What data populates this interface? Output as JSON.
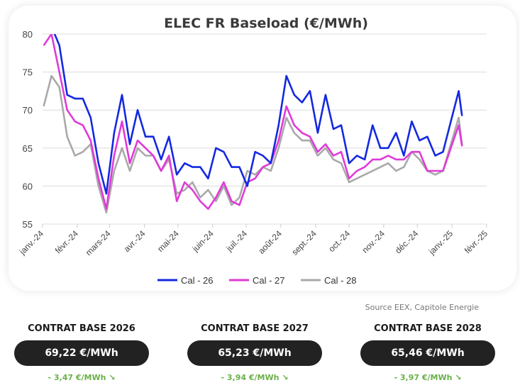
{
  "chart_data": {
    "type": "line",
    "title": "ELEC FR Baseload (€/MWh)",
    "ylim": [
      55,
      80
    ],
    "yticks": [
      55,
      60,
      65,
      70,
      75,
      80
    ],
    "xlim": [
      "2024-01-01",
      "2025-02-01"
    ],
    "xticks": [
      {
        "date": "2024-01-01",
        "label": "janv.-24"
      },
      {
        "date": "2024-02-01",
        "label": "févr.-24"
      },
      {
        "date": "2024-03-01",
        "label": "mars-24"
      },
      {
        "date": "2024-04-01",
        "label": "avr.-24"
      },
      {
        "date": "2024-05-01",
        "label": "mai-24"
      },
      {
        "date": "2024-06-01",
        "label": "juin-24"
      },
      {
        "date": "2024-07-01",
        "label": "juil.-24"
      },
      {
        "date": "2024-08-01",
        "label": "août-24"
      },
      {
        "date": "2024-09-01",
        "label": "sept.-24"
      },
      {
        "date": "2024-10-01",
        "label": "oct.-24"
      },
      {
        "date": "2024-11-01",
        "label": "nov.-24"
      },
      {
        "date": "2024-12-01",
        "label": "déc.-24"
      },
      {
        "date": "2025-01-01",
        "label": "janv.-25"
      },
      {
        "date": "2025-02-01",
        "label": "févr.-25"
      }
    ],
    "grid": true,
    "legend_position": "bottom",
    "x": [
      "2024-01-02",
      "2024-01-09",
      "2024-01-16",
      "2024-01-23",
      "2024-01-30",
      "2024-02-06",
      "2024-02-13",
      "2024-02-20",
      "2024-02-27",
      "2024-03-05",
      "2024-03-12",
      "2024-03-19",
      "2024-03-26",
      "2024-04-02",
      "2024-04-09",
      "2024-04-16",
      "2024-04-23",
      "2024-04-30",
      "2024-05-07",
      "2024-05-14",
      "2024-05-21",
      "2024-05-28",
      "2024-06-04",
      "2024-06-11",
      "2024-06-18",
      "2024-06-25",
      "2024-07-02",
      "2024-07-09",
      "2024-07-16",
      "2024-07-23",
      "2024-07-30",
      "2024-08-06",
      "2024-08-13",
      "2024-08-20",
      "2024-08-27",
      "2024-09-03",
      "2024-09-10",
      "2024-09-17",
      "2024-09-24",
      "2024-10-01",
      "2024-10-08",
      "2024-10-15",
      "2024-10-22",
      "2024-10-29",
      "2024-11-05",
      "2024-11-12",
      "2024-11-19",
      "2024-11-26",
      "2024-12-03",
      "2024-12-10",
      "2024-12-17",
      "2024-12-24",
      "2024-12-31",
      "2025-01-07",
      "2025-01-10"
    ],
    "series": [
      {
        "name": "Cal - 26",
        "color": "#1429e0",
        "values": [
          80.5,
          81,
          78.5,
          72,
          71.5,
          71.5,
          69,
          63,
          59,
          67,
          72,
          65.5,
          70,
          66.5,
          66.5,
          63.5,
          66.5,
          61.5,
          63,
          62.5,
          62.5,
          61,
          65,
          64.5,
          62.5,
          62.5,
          60,
          64.5,
          64,
          63,
          68,
          74.5,
          72,
          71,
          72.5,
          67,
          72,
          67.5,
          68,
          63,
          64,
          63.5,
          68,
          65,
          65,
          67,
          64,
          68.5,
          66,
          66.5,
          64,
          64.5,
          68.5,
          72.5,
          69.22
        ]
      },
      {
        "name": "Cal - 27",
        "color": "#e03ad8",
        "values": [
          78.5,
          80,
          75,
          70,
          68.5,
          68,
          66,
          61,
          57,
          64,
          68.5,
          63,
          66,
          65,
          64,
          62,
          64,
          58,
          60.5,
          59.5,
          58,
          57,
          58.5,
          60.5,
          58,
          57.5,
          60.5,
          61,
          62.5,
          63,
          66,
          70.5,
          68,
          67,
          66.5,
          64.5,
          65.5,
          64,
          64.5,
          61,
          62,
          62.5,
          63.5,
          63.5,
          64,
          63.5,
          63.5,
          64.5,
          64.5,
          62,
          62,
          62,
          65,
          68,
          65.23
        ]
      },
      {
        "name": "Cal - 28",
        "color": "#a9a9a9",
        "values": [
          70.5,
          74.5,
          73,
          66.5,
          64,
          64.5,
          65.5,
          60,
          56.5,
          62,
          65,
          62,
          65,
          64,
          64,
          62,
          63.5,
          59,
          59.5,
          60.5,
          58.5,
          59.5,
          58,
          60,
          57.5,
          58.5,
          62,
          61.5,
          62.5,
          62,
          65,
          69,
          67,
          66,
          66,
          64,
          65,
          63.5,
          63,
          60.5,
          61,
          61.5,
          62,
          62.5,
          63,
          62,
          62.5,
          64.5,
          63.5,
          62,
          61.5,
          62,
          65.5,
          69,
          65.46
        ]
      }
    ]
  },
  "source": "Source EEX, Capitole Energie",
  "contracts": [
    {
      "title": "CONTRAT BASE 2026",
      "price": "69,22 €/MWh",
      "change": "- 3,47 €/MWh ↘"
    },
    {
      "title": "CONTRAT BASE 2027",
      "price": "65,23 €/MWh",
      "change": "- 3,94 €/MWh ↘"
    },
    {
      "title": "CONTRAT BASE 2028",
      "price": "65,46 €/MWh",
      "change": "- 3,97 €/MWh ↘"
    }
  ]
}
